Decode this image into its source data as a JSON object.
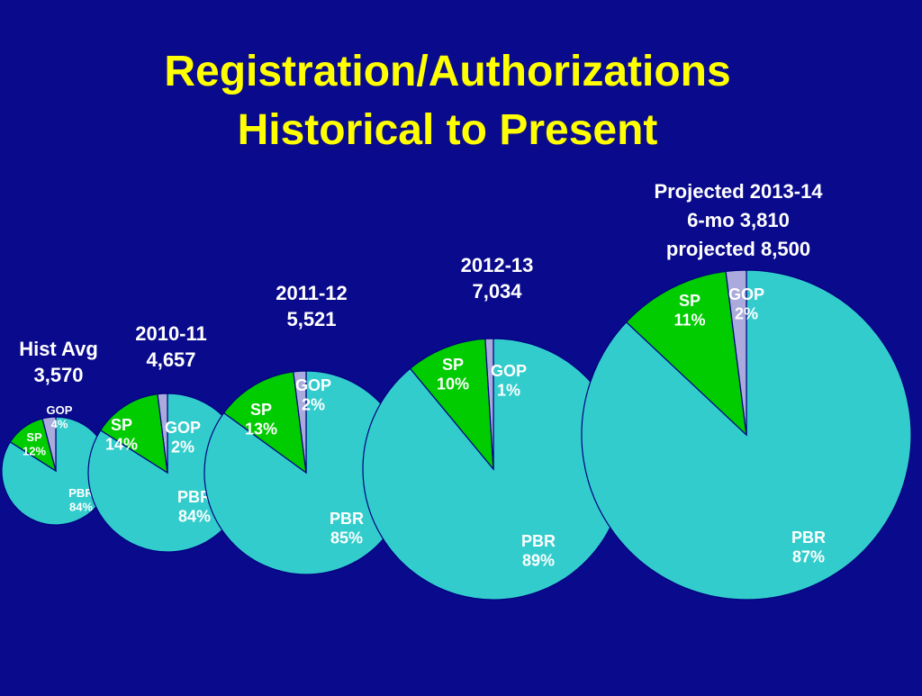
{
  "slide": {
    "title_line1": "Registration/Authorizations",
    "title_line2": "Historical to Present"
  },
  "colors": {
    "background": "#0a0a8c",
    "title": "#ffff00",
    "PBR": "#33cccc",
    "SP": "#00cc00",
    "GOP": "#aaaadd",
    "outline": "#000080"
  },
  "chart_data": {
    "type": "pie",
    "slice_order": [
      "GOP",
      "SP",
      "PBR"
    ],
    "charts": [
      {
        "caption": [
          "Hist Avg",
          "3,570"
        ],
        "slices": [
          {
            "name": "GOP",
            "label": "GOP",
            "pct_label": "4%",
            "value": 4
          },
          {
            "name": "SP",
            "label": "SP",
            "pct_label": "12%",
            "value": 12
          },
          {
            "name": "PBR",
            "label": "PBR",
            "pct_label": "84%",
            "value": 84
          }
        ]
      },
      {
        "caption": [
          "2010-11",
          "4,657"
        ],
        "slices": [
          {
            "name": "GOP",
            "label": "GOP",
            "pct_label": "2%",
            "value": 2
          },
          {
            "name": "SP",
            "label": "SP",
            "pct_label": "14%",
            "value": 14
          },
          {
            "name": "PBR",
            "label": "PBR",
            "pct_label": "84%",
            "value": 84
          }
        ]
      },
      {
        "caption": [
          "2011-12",
          "5,521"
        ],
        "slices": [
          {
            "name": "GOP",
            "label": "GOP",
            "pct_label": "2%",
            "value": 2
          },
          {
            "name": "SP",
            "label": "SP",
            "pct_label": "13%",
            "value": 13
          },
          {
            "name": "PBR",
            "label": "PBR",
            "pct_label": "85%",
            "value": 85
          }
        ]
      },
      {
        "caption": [
          "2012-13",
          "7,034"
        ],
        "slices": [
          {
            "name": "GOP",
            "label": "GOP",
            "pct_label": "1%",
            "value": 1
          },
          {
            "name": "SP",
            "label": "SP",
            "pct_label": "10%",
            "value": 10
          },
          {
            "name": "PBR",
            "label": "PBR",
            "pct_label": "89%",
            "value": 89
          }
        ]
      },
      {
        "caption": [
          "Projected 2013-14",
          "6-mo 3,810",
          "projected 8,500"
        ],
        "slices": [
          {
            "name": "GOP",
            "label": "GOP",
            "pct_label": "2%",
            "value": 2
          },
          {
            "name": "SP",
            "label": "SP",
            "pct_label": "11%",
            "value": 11
          },
          {
            "name": "PBR",
            "label": "PBR",
            "pct_label": "87%",
            "value": 87
          }
        ]
      }
    ]
  }
}
